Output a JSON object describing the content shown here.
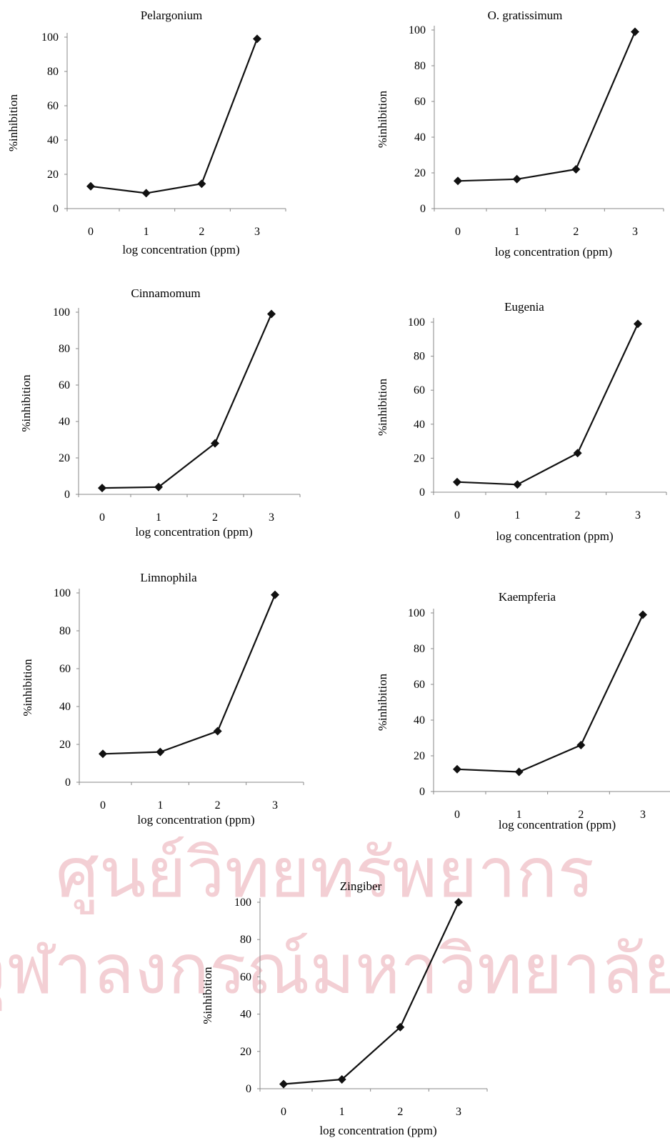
{
  "page": {
    "watermark": {
      "line1": "ศูนย์วิทยทรัพยากร",
      "line2": "จุฬาลงกรณ์มหาวิทยาลัย",
      "color": "#f3cfd4"
    }
  },
  "chart_data": [
    {
      "type": "line",
      "title": "Pelargonium",
      "xlabel": "log concentration (ppm)",
      "ylabel": "%inhibition",
      "x": [
        0,
        1,
        2,
        3
      ],
      "y": [
        13,
        9,
        14.5,
        99
      ],
      "xlim": [
        -0.5,
        3.5
      ],
      "ylim": [
        0,
        100
      ],
      "yticks": [
        0,
        20,
        40,
        60,
        80,
        100
      ],
      "xticks": [
        0,
        1,
        2,
        3
      ],
      "grid": false
    },
    {
      "type": "line",
      "title": "O. gratissimum",
      "xlabel": "log concentration (ppm)",
      "ylabel": "%inhibition",
      "x": [
        0,
        1,
        2,
        3
      ],
      "y": [
        15.5,
        16.5,
        22,
        99
      ],
      "xlim": [
        -0.5,
        3.5
      ],
      "ylim": [
        0,
        100
      ],
      "yticks": [
        0,
        20,
        40,
        60,
        80,
        100
      ],
      "xticks": [
        0,
        1,
        2,
        3
      ],
      "grid": false
    },
    {
      "type": "line",
      "title": "Cinnamomum",
      "xlabel": "log concentration (ppm)",
      "ylabel": "%inhibition",
      "x": [
        0,
        1,
        2,
        3
      ],
      "y": [
        3.5,
        4,
        28,
        99
      ],
      "xlim": [
        -0.5,
        3.5
      ],
      "ylim": [
        0,
        100
      ],
      "yticks": [
        0,
        20,
        40,
        60,
        80,
        100
      ],
      "xticks": [
        0,
        1,
        2,
        3
      ],
      "grid": false
    },
    {
      "type": "line",
      "title": "Eugenia",
      "xlabel": "log concentration (ppm)",
      "ylabel": "%inhibition",
      "x": [
        0,
        1,
        2,
        3
      ],
      "y": [
        6,
        4.5,
        23,
        99
      ],
      "xlim": [
        -0.5,
        3.5
      ],
      "ylim": [
        0,
        100
      ],
      "yticks": [
        0,
        20,
        40,
        60,
        80,
        100
      ],
      "xticks": [
        0,
        1,
        2,
        3
      ],
      "grid": false
    },
    {
      "type": "line",
      "title": "Limnophila",
      "xlabel": "log concentration (ppm)",
      "ylabel": "%inhibition",
      "x": [
        0,
        1,
        2,
        3
      ],
      "y": [
        15,
        16,
        27,
        99
      ],
      "xlim": [
        -0.5,
        3.5
      ],
      "ylim": [
        0,
        100
      ],
      "yticks": [
        0,
        20,
        40,
        60,
        80,
        100
      ],
      "xticks": [
        0,
        1,
        2,
        3
      ],
      "grid": false
    },
    {
      "type": "line",
      "title": "Kaempferia",
      "xlabel": "log concentration (ppm)",
      "ylabel": "%inhibition",
      "x": [
        0,
        1,
        2,
        3
      ],
      "y": [
        12.5,
        11,
        26,
        99
      ],
      "xlim": [
        -0.5,
        3.5
      ],
      "ylim": [
        0,
        100
      ],
      "yticks": [
        0,
        20,
        40,
        60,
        80,
        100
      ],
      "xticks": [
        0,
        1,
        2,
        3
      ],
      "grid": false
    },
    {
      "type": "line",
      "title": "Zingiber",
      "xlabel": "log concentration (ppm)",
      "ylabel": "%inhibition",
      "x": [
        0,
        1,
        2,
        3
      ],
      "y": [
        2.5,
        5,
        33,
        100
      ],
      "xlim": [
        -0.5,
        3.5
      ],
      "ylim": [
        0,
        100
      ],
      "yticks": [
        0,
        20,
        40,
        60,
        80,
        100
      ],
      "xticks": [
        0,
        1,
        2,
        3
      ],
      "grid": false
    }
  ],
  "style": {
    "line_color": "#111111",
    "marker_color": "#111111",
    "axis_color": "#888888",
    "marker": "diamond"
  }
}
